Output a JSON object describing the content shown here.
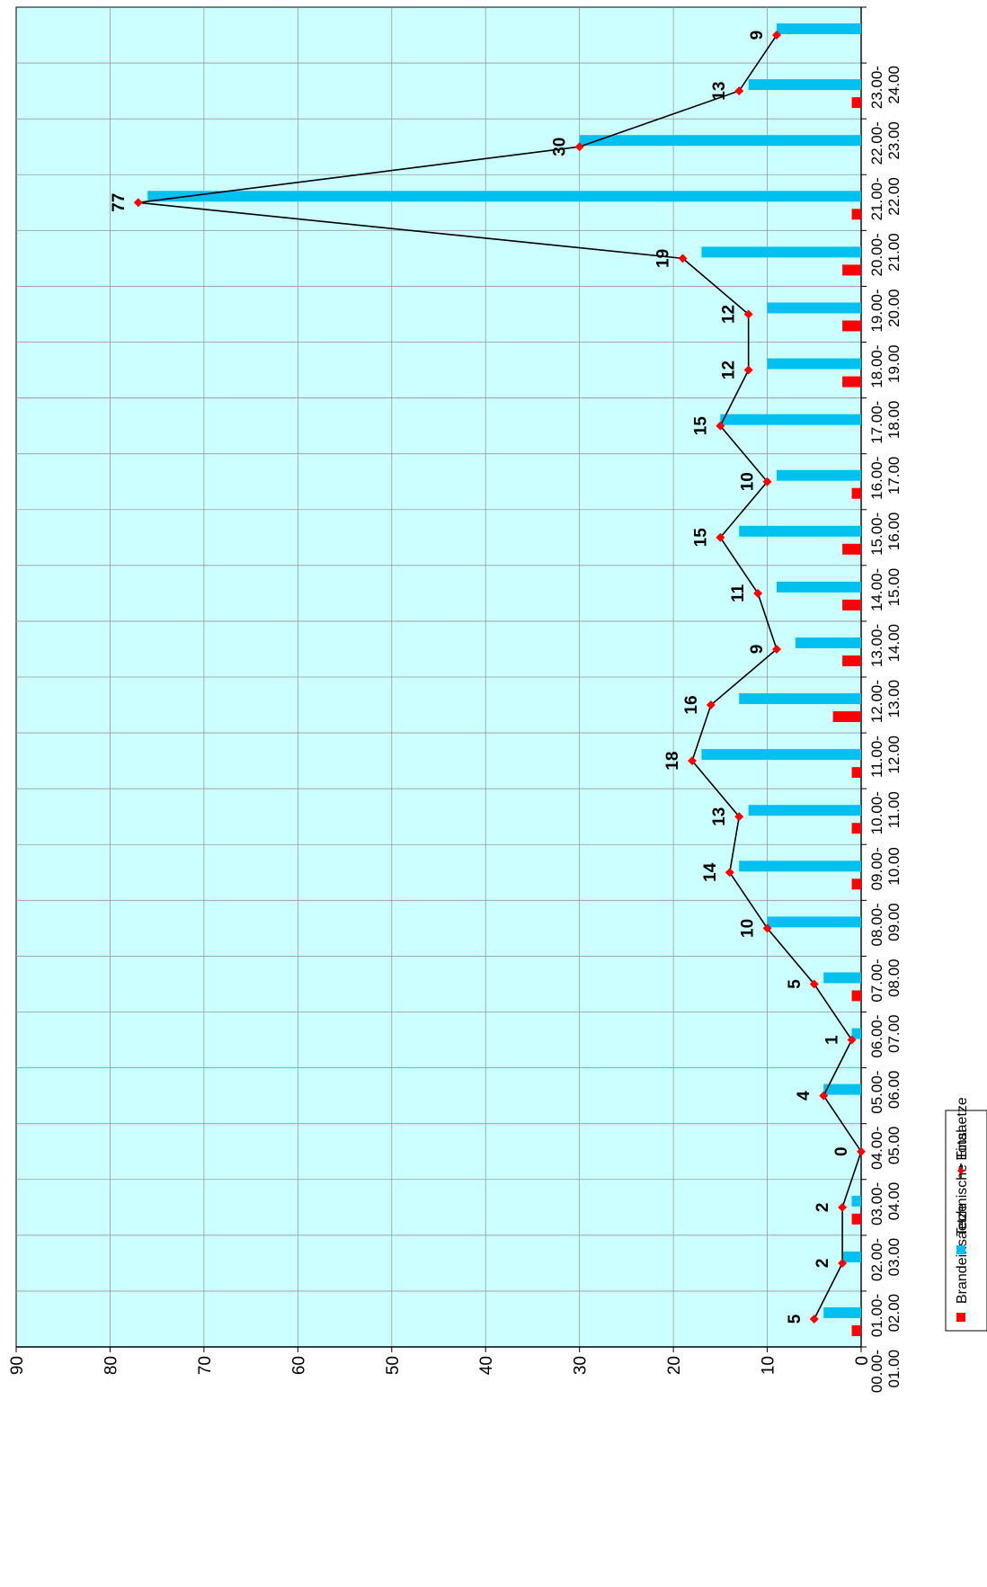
{
  "chart_data": {
    "type": "bar",
    "orientation": "rotated-90",
    "categories": [
      [
        "00.00-",
        "01.00"
      ],
      [
        "01.00-",
        "02.00"
      ],
      [
        "02.00-",
        "03.00"
      ],
      [
        "03.00-",
        "04.00"
      ],
      [
        "04.00-",
        "05.00"
      ],
      [
        "05.00-",
        "06.00"
      ],
      [
        "06.00-",
        "07.00"
      ],
      [
        "07.00-",
        "08.00"
      ],
      [
        "08.00-",
        "09.00"
      ],
      [
        "09.00-",
        "10.00"
      ],
      [
        "10.00-",
        "11.00"
      ],
      [
        "11.00-",
        "12.00"
      ],
      [
        "12.00-",
        "13.00"
      ],
      [
        "13.00-",
        "14.00"
      ],
      [
        "14.00-",
        "15.00"
      ],
      [
        "15.00-",
        "16.00"
      ],
      [
        "16.00-",
        "17.00"
      ],
      [
        "17.00-",
        "18.00"
      ],
      [
        "18.00-",
        "19.00"
      ],
      [
        "19.00-",
        "20.00"
      ],
      [
        "20.00-",
        "21.00"
      ],
      [
        "21.00-",
        "22.00"
      ],
      [
        "22.00-",
        "23.00"
      ],
      [
        "23.00-",
        "24.00"
      ]
    ],
    "series": [
      {
        "name": "Brandeinsaetze",
        "type": "bar",
        "color": "#ff0000",
        "values": [
          1,
          0,
          1,
          0,
          0,
          0,
          1,
          0,
          1,
          1,
          1,
          3,
          2,
          2,
          2,
          1,
          0,
          2,
          2,
          2,
          1,
          0,
          1,
          0
        ]
      },
      {
        "name": "Technische Einsaetze",
        "type": "bar",
        "color": "#00c0f0",
        "values": [
          4,
          2,
          1,
          0,
          4,
          1,
          4,
          10,
          13,
          12,
          17,
          13,
          7,
          9,
          13,
          9,
          15,
          10,
          10,
          17,
          76,
          30,
          12,
          9
        ]
      },
      {
        "name": "Total",
        "type": "line",
        "color": "#000000",
        "marker_color": "#ff0000",
        "values": [
          5,
          2,
          2,
          0,
          4,
          1,
          5,
          10,
          14,
          13,
          18,
          16,
          9,
          11,
          15,
          10,
          15,
          12,
          12,
          19,
          77,
          30,
          13,
          9
        ]
      }
    ],
    "ylim": [
      0,
      90
    ],
    "yticks": [
      0,
      10,
      20,
      30,
      40,
      50,
      60,
      70,
      80,
      90
    ],
    "grid": true,
    "plot_background": "#ccffff",
    "legend_position": "bottom"
  }
}
